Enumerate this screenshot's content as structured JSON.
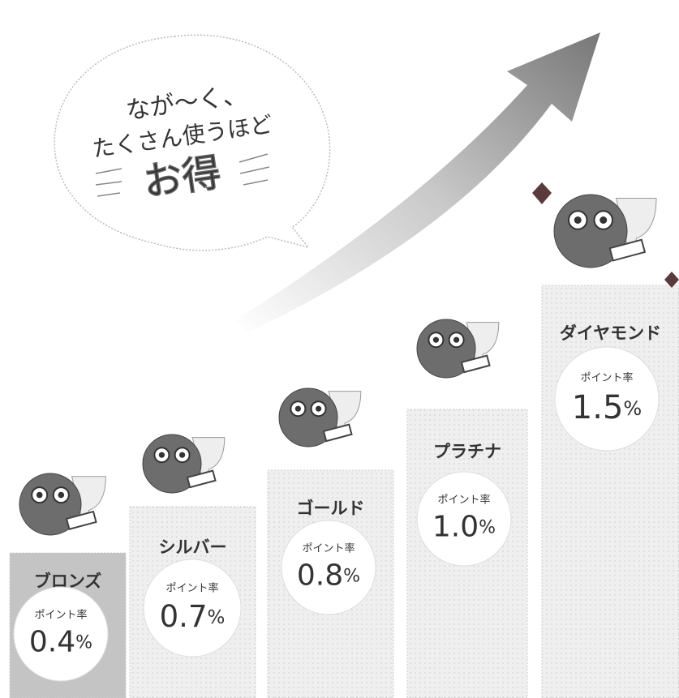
{
  "speech_bubble": {
    "lines": [
      "なが～く、",
      "たくさん使うほど"
    ],
    "emphasis": "お得"
  },
  "tiers": [
    {
      "name": "ブロンズ",
      "rate_label": "ポイント率",
      "rate": "0.4",
      "unit": "%"
    },
    {
      "name": "シルバー",
      "rate_label": "ポイント率",
      "rate": "0.7",
      "unit": "%"
    },
    {
      "name": "ゴールド",
      "rate_label": "ポイント率",
      "rate": "0.8",
      "unit": "%"
    },
    {
      "name": "プラチナ",
      "rate_label": "ポイント率",
      "rate": "1.0",
      "unit": "%"
    },
    {
      "name": "ダイヤモンド",
      "rate_label": "ポイント率",
      "rate": "1.5",
      "unit": "%"
    }
  ]
}
